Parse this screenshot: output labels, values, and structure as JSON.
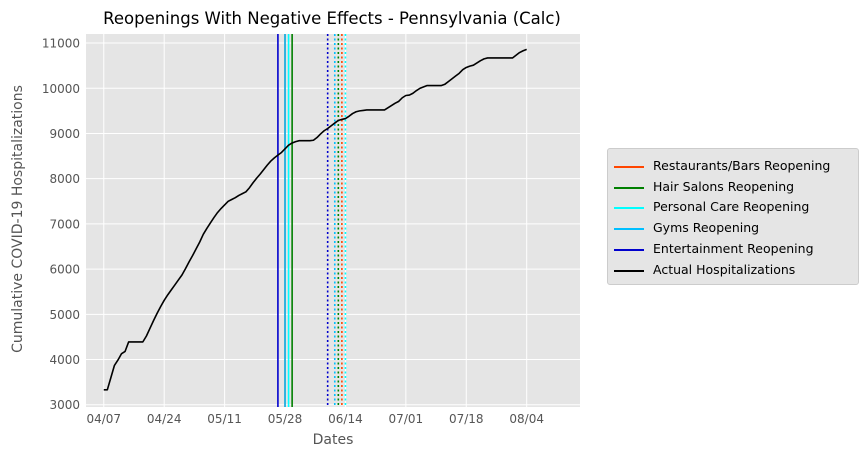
{
  "chart_data": {
    "type": "line",
    "title": "Reopenings With Negative Effects - Pennsylvania (Calc)",
    "xlabel": "Dates",
    "ylabel": "Cumulative COVID-19 Hospitalizations",
    "x_range": [
      "2020-04-02",
      "2020-08-19"
    ],
    "ylim": [
      2950,
      11200
    ],
    "yticks": [
      3000,
      4000,
      5000,
      6000,
      7000,
      8000,
      9000,
      10000,
      11000
    ],
    "xticks": [
      {
        "date": "2020-04-07",
        "label": "04/07"
      },
      {
        "date": "2020-04-24",
        "label": "04/24"
      },
      {
        "date": "2020-05-11",
        "label": "05/11"
      },
      {
        "date": "2020-05-28",
        "label": "05/28"
      },
      {
        "date": "2020-06-14",
        "label": "06/14"
      },
      {
        "date": "2020-07-01",
        "label": "07/01"
      },
      {
        "date": "2020-07-18",
        "label": "07/18"
      },
      {
        "date": "2020-08-04",
        "label": "08/04"
      }
    ],
    "grid": true,
    "legend_position": "outside-right",
    "series": [
      {
        "name": "Actual Hospitalizations",
        "color": "#000000",
        "points": [
          [
            "2020-04-07",
            3330
          ],
          [
            "2020-04-08",
            3330
          ],
          [
            "2020-04-09",
            3600
          ],
          [
            "2020-04-10",
            3870
          ],
          [
            "2020-04-11",
            3990
          ],
          [
            "2020-04-12",
            4130
          ],
          [
            "2020-04-13",
            4180
          ],
          [
            "2020-04-14",
            4390
          ],
          [
            "2020-04-15",
            4390
          ],
          [
            "2020-04-16",
            4390
          ],
          [
            "2020-04-17",
            4390
          ],
          [
            "2020-04-18",
            4390
          ],
          [
            "2020-04-19",
            4520
          ],
          [
            "2020-04-20",
            4690
          ],
          [
            "2020-04-21",
            4860
          ],
          [
            "2020-04-22",
            5020
          ],
          [
            "2020-04-23",
            5170
          ],
          [
            "2020-04-24",
            5310
          ],
          [
            "2020-04-25",
            5430
          ],
          [
            "2020-04-26",
            5540
          ],
          [
            "2020-04-27",
            5650
          ],
          [
            "2020-04-28",
            5760
          ],
          [
            "2020-04-29",
            5870
          ],
          [
            "2020-04-30",
            6010
          ],
          [
            "2020-05-01",
            6160
          ],
          [
            "2020-05-02",
            6300
          ],
          [
            "2020-05-03",
            6450
          ],
          [
            "2020-05-04",
            6600
          ],
          [
            "2020-05-05",
            6770
          ],
          [
            "2020-05-06",
            6900
          ],
          [
            "2020-05-07",
            7020
          ],
          [
            "2020-05-08",
            7140
          ],
          [
            "2020-05-09",
            7250
          ],
          [
            "2020-05-10",
            7340
          ],
          [
            "2020-05-11",
            7420
          ],
          [
            "2020-05-12",
            7500
          ],
          [
            "2020-05-13",
            7540
          ],
          [
            "2020-05-14",
            7580
          ],
          [
            "2020-05-15",
            7630
          ],
          [
            "2020-05-16",
            7670
          ],
          [
            "2020-05-17",
            7710
          ],
          [
            "2020-05-18",
            7800
          ],
          [
            "2020-05-19",
            7910
          ],
          [
            "2020-05-20",
            8010
          ],
          [
            "2020-05-21",
            8100
          ],
          [
            "2020-05-22",
            8200
          ],
          [
            "2020-05-23",
            8300
          ],
          [
            "2020-05-24",
            8390
          ],
          [
            "2020-05-25",
            8460
          ],
          [
            "2020-05-26",
            8520
          ],
          [
            "2020-05-27",
            8580
          ],
          [
            "2020-05-28",
            8660
          ],
          [
            "2020-05-29",
            8740
          ],
          [
            "2020-05-30",
            8790
          ],
          [
            "2020-05-31",
            8820
          ],
          [
            "2020-06-01",
            8840
          ],
          [
            "2020-06-02",
            8840
          ],
          [
            "2020-06-03",
            8840
          ],
          [
            "2020-06-04",
            8840
          ],
          [
            "2020-06-05",
            8850
          ],
          [
            "2020-06-06",
            8910
          ],
          [
            "2020-06-07",
            8990
          ],
          [
            "2020-06-08",
            9060
          ],
          [
            "2020-06-09",
            9110
          ],
          [
            "2020-06-10",
            9170
          ],
          [
            "2020-06-11",
            9230
          ],
          [
            "2020-06-12",
            9290
          ],
          [
            "2020-06-13",
            9310
          ],
          [
            "2020-06-14",
            9330
          ],
          [
            "2020-06-15",
            9380
          ],
          [
            "2020-06-16",
            9440
          ],
          [
            "2020-06-17",
            9480
          ],
          [
            "2020-06-18",
            9500
          ],
          [
            "2020-06-19",
            9510
          ],
          [
            "2020-06-20",
            9520
          ],
          [
            "2020-06-21",
            9520
          ],
          [
            "2020-06-22",
            9520
          ],
          [
            "2020-06-23",
            9520
          ],
          [
            "2020-06-24",
            9520
          ],
          [
            "2020-06-25",
            9520
          ],
          [
            "2020-06-26",
            9570
          ],
          [
            "2020-06-27",
            9620
          ],
          [
            "2020-06-28",
            9670
          ],
          [
            "2020-06-29",
            9710
          ],
          [
            "2020-06-30",
            9790
          ],
          [
            "2020-07-01",
            9840
          ],
          [
            "2020-07-02",
            9850
          ],
          [
            "2020-07-03",
            9890
          ],
          [
            "2020-07-04",
            9950
          ],
          [
            "2020-07-05",
            10000
          ],
          [
            "2020-07-06",
            10030
          ],
          [
            "2020-07-07",
            10060
          ],
          [
            "2020-07-08",
            10060
          ],
          [
            "2020-07-09",
            10060
          ],
          [
            "2020-07-10",
            10060
          ],
          [
            "2020-07-11",
            10060
          ],
          [
            "2020-07-12",
            10090
          ],
          [
            "2020-07-13",
            10150
          ],
          [
            "2020-07-14",
            10210
          ],
          [
            "2020-07-15",
            10270
          ],
          [
            "2020-07-16",
            10330
          ],
          [
            "2020-07-17",
            10410
          ],
          [
            "2020-07-18",
            10460
          ],
          [
            "2020-07-19",
            10490
          ],
          [
            "2020-07-20",
            10510
          ],
          [
            "2020-07-21",
            10560
          ],
          [
            "2020-07-22",
            10610
          ],
          [
            "2020-07-23",
            10650
          ],
          [
            "2020-07-24",
            10670
          ],
          [
            "2020-07-25",
            10670
          ],
          [
            "2020-07-26",
            10670
          ],
          [
            "2020-07-27",
            10670
          ],
          [
            "2020-07-28",
            10670
          ],
          [
            "2020-07-29",
            10670
          ],
          [
            "2020-07-30",
            10670
          ],
          [
            "2020-07-31",
            10670
          ],
          [
            "2020-08-01",
            10730
          ],
          [
            "2020-08-02",
            10790
          ],
          [
            "2020-08-03",
            10830
          ],
          [
            "2020-08-04",
            10860
          ]
        ]
      }
    ],
    "vertical_lines": [
      {
        "name": "Restaurants/Bars Reopening",
        "color": "#ff4500",
        "date": "2020-05-28",
        "style": "solid"
      },
      {
        "name": "Hair Salons Reopening",
        "color": "#008000",
        "date": "2020-05-30",
        "style": "solid"
      },
      {
        "name": "Personal Care Reopening",
        "color": "#00ffff",
        "date": "2020-05-29",
        "style": "solid"
      },
      {
        "name": "Gyms Reopening",
        "color": "#00bfff",
        "date": "2020-05-28",
        "style": "solid"
      },
      {
        "name": "Entertainment Reopening",
        "color": "#0000cd",
        "date": "2020-05-26",
        "style": "solid"
      },
      {
        "name": "Entertainment (dotted)",
        "color": "#0000cd",
        "date": "2020-06-09",
        "style": "dotted"
      },
      {
        "name": "Gyms (dotted)",
        "color": "#00bfff",
        "date": "2020-06-11",
        "style": "dotted"
      },
      {
        "name": "Personal Care (dotted)",
        "color": "#00ffff",
        "date": "2020-06-14",
        "style": "dotted"
      },
      {
        "name": "Hair Salons (dotted)",
        "color": "#008000",
        "date": "2020-06-12",
        "style": "dotted"
      },
      {
        "name": "Restaurants/Bars (dotted)",
        "color": "#ff4500",
        "date": "2020-06-13",
        "style": "dotted"
      }
    ],
    "legend": [
      {
        "label": "Restaurants/Bars Reopening",
        "color": "#ff4500"
      },
      {
        "label": "Hair Salons Reopening",
        "color": "#008000"
      },
      {
        "label": "Personal Care Reopening",
        "color": "#00ffff"
      },
      {
        "label": "Gyms Reopening",
        "color": "#00bfff"
      },
      {
        "label": "Entertainment Reopening",
        "color": "#0000cd"
      },
      {
        "label": "Actual Hospitalizations",
        "color": "#000000"
      }
    ]
  }
}
